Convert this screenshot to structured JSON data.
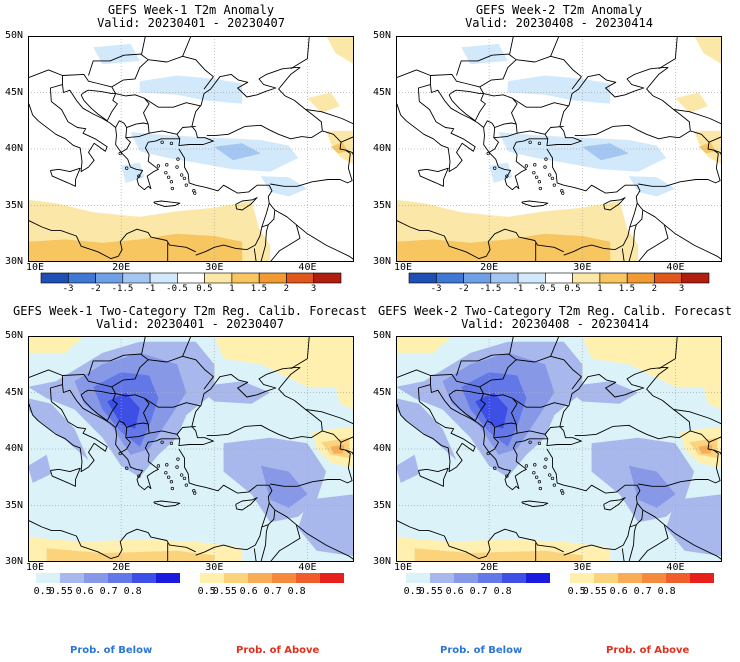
{
  "panels": [
    {
      "line1": "GEFS Week-1 T2m Anomaly",
      "line2": "Valid: 20230401 - 20230407"
    },
    {
      "line1": "GEFS Week-2 T2m Anomaly",
      "line2": "Valid: 20230408 - 20230414"
    },
    {
      "line1": "GEFS Week-1 Two-Category T2m Reg. Calib. Forecast",
      "line2": "Valid: 20230401 - 20230407"
    },
    {
      "line1": "GEFS Week-2 Two-Category T2m Reg. Calib. Forecast",
      "line2": "Valid: 20230408 - 20230414"
    }
  ],
  "lat_labels": [
    "50N",
    "45N",
    "40N",
    "35N",
    "30N"
  ],
  "lon_labels": [
    "10E",
    "20E",
    "30E",
    "40E"
  ],
  "anomaly_colorbar": {
    "labels": [
      "-3",
      "-2",
      "-1.5",
      "-1",
      "-0.5",
      "0.5",
      "1",
      "1.5",
      "2",
      "3"
    ],
    "colors": [
      "#1f4fb4",
      "#3f78d4",
      "#6f9fe6",
      "#a3c7f2",
      "#d2e8fb",
      "#ffffff",
      "#fbe8a8",
      "#f8c661",
      "#f19a32",
      "#e0571b",
      "#b01e10"
    ]
  },
  "below_colorbar": {
    "labels": [
      "0.5",
      "0.55",
      "0.6",
      "0.7",
      "0.8"
    ],
    "colors": [
      "#dbf2f8",
      "#a8b8ec",
      "#8698e6",
      "#6477e6",
      "#3e4fe6",
      "#1b1be0"
    ]
  },
  "above_colorbar": {
    "labels": [
      "0.5",
      "0.55",
      "0.6",
      "0.7",
      "0.8"
    ],
    "colors": [
      "#fff0b0",
      "#fbd37d",
      "#f8ac55",
      "#f48a3c",
      "#f05d2c",
      "#e8201b"
    ]
  },
  "prob_labels": {
    "below": "Prob. of Below",
    "above": "Prob. of Above"
  },
  "colors": {
    "below_text": "#2a76d6",
    "above_text": "#e0301e",
    "grid": "#aaaaaa"
  }
}
